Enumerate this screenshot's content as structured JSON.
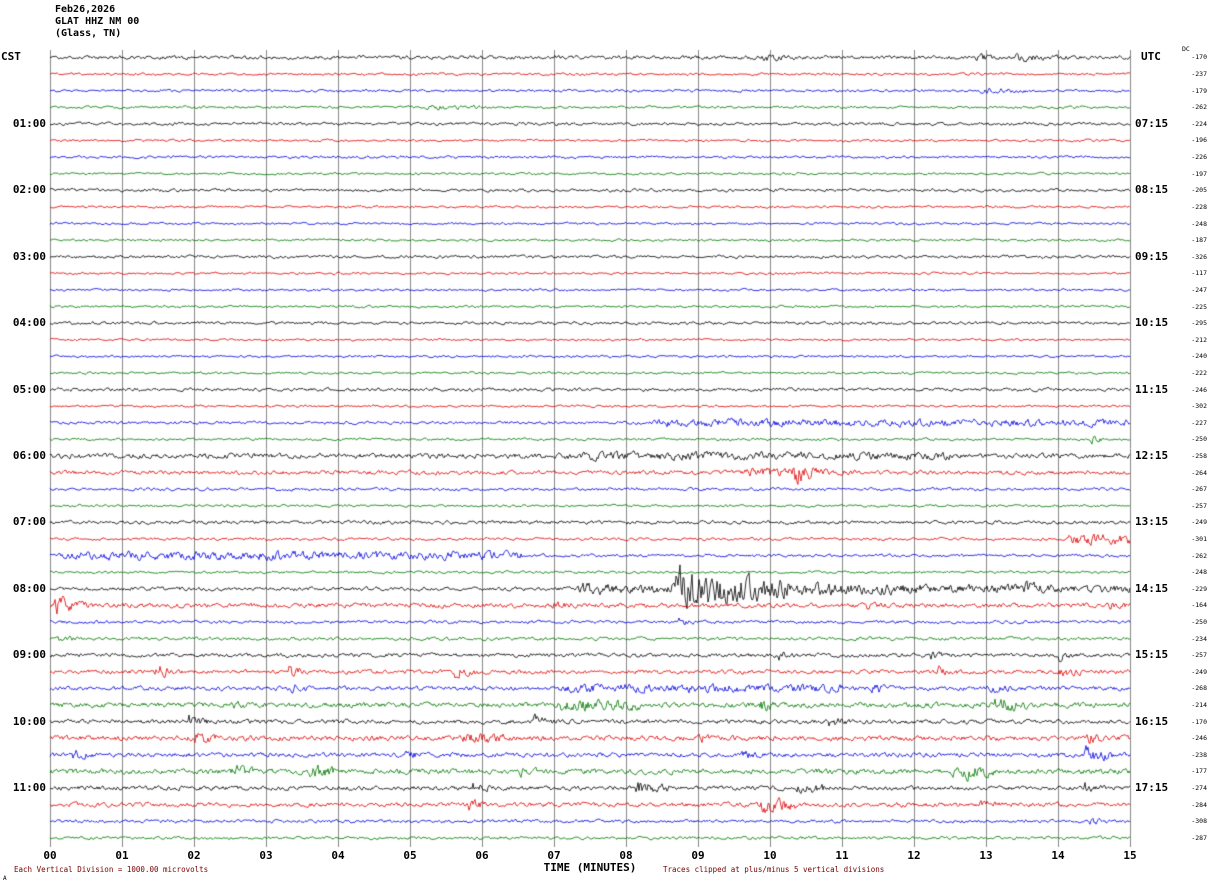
{
  "header": {
    "date": "Feb26,2026",
    "station": "GLAT HHZ NM 00",
    "location": "(Glass, TN)"
  },
  "axis": {
    "left_tz": "CST",
    "right_tz": "UTC",
    "dc_header": "DC",
    "x_label": "TIME (MINUTES)",
    "x_ticks": [
      "00",
      "01",
      "02",
      "03",
      "04",
      "05",
      "06",
      "07",
      "08",
      "09",
      "10",
      "11",
      "12",
      "13",
      "14",
      "15"
    ]
  },
  "footer": {
    "scale_note": "Each Vertical Division = 1000.00 microvolts",
    "clip_note": "Traces clipped at plus/minus 5 vertical divisions",
    "note_color": "#770000",
    "corner_mark": "A"
  },
  "chart_data": {
    "type": "line",
    "title": "Helicorder record GLAT HHZ NM 00 (Glass, TN) Feb26,2026",
    "x_axis": {
      "label": "TIME (MINUTES)",
      "range_minutes": [
        0,
        15
      ]
    },
    "row_interval_minutes": 15,
    "clip_divisions": 5,
    "microvolts_per_division": 1000.0,
    "grid_color": "#888888",
    "colors_cycle": [
      "#000000",
      "#dd0000",
      "#0000dd",
      "#007700"
    ],
    "hour_rows": [
      {
        "row": 4,
        "left": "01:00",
        "right": "07:15"
      },
      {
        "row": 8,
        "left": "02:00",
        "right": "08:15"
      },
      {
        "row": 12,
        "left": "03:00",
        "right": "09:15"
      },
      {
        "row": 16,
        "left": "04:00",
        "right": "10:15"
      },
      {
        "row": 20,
        "left": "05:00",
        "right": "11:15"
      },
      {
        "row": 24,
        "left": "06:00",
        "right": "12:15"
      },
      {
        "row": 28,
        "left": "07:00",
        "right": "13:15"
      },
      {
        "row": 32,
        "left": "08:00",
        "right": "14:15"
      },
      {
        "row": 36,
        "left": "09:00",
        "right": "15:15"
      },
      {
        "row": 40,
        "left": "10:00",
        "right": "16:15"
      },
      {
        "row": 44,
        "left": "11:00",
        "right": "17:15"
      }
    ],
    "traces": [
      {
        "dc": -170,
        "color": 0,
        "amp": 1.6,
        "events": [
          [
            9.85,
            10.45,
            4
          ],
          [
            12.85,
            13.2,
            3.5
          ],
          [
            13.35,
            14.35,
            3
          ]
        ]
      },
      {
        "dc": -237,
        "color": 1,
        "amp": 1.1,
        "events": []
      },
      {
        "dc": -179,
        "color": 2,
        "amp": 1.1,
        "events": [
          [
            12.9,
            13.6,
            1.8,
            1
          ]
        ]
      },
      {
        "dc": -262,
        "color": 3,
        "amp": 1.1,
        "events": [
          [
            5.2,
            6.0,
            1.5,
            1
          ]
        ]
      },
      {
        "dc": -224,
        "color": 0,
        "amp": 1.3,
        "events": []
      },
      {
        "dc": -196,
        "color": 1,
        "amp": 1.0,
        "events": []
      },
      {
        "dc": -226,
        "color": 2,
        "amp": 1.1,
        "events": []
      },
      {
        "dc": -197,
        "color": 3,
        "amp": 1.0,
        "events": []
      },
      {
        "dc": -205,
        "color": 0,
        "amp": 1.3,
        "events": []
      },
      {
        "dc": -228,
        "color": 1,
        "amp": 1.0,
        "events": []
      },
      {
        "dc": -248,
        "color": 2,
        "amp": 1.0,
        "events": []
      },
      {
        "dc": -187,
        "color": 3,
        "amp": 1.0,
        "events": []
      },
      {
        "dc": -326,
        "color": 0,
        "amp": 1.3,
        "events": []
      },
      {
        "dc": -117,
        "color": 1,
        "amp": 1.0,
        "events": []
      },
      {
        "dc": -247,
        "color": 2,
        "amp": 1.0,
        "events": []
      },
      {
        "dc": -225,
        "color": 3,
        "amp": 1.0,
        "events": []
      },
      {
        "dc": -295,
        "color": 0,
        "amp": 1.3,
        "events": []
      },
      {
        "dc": -212,
        "color": 1,
        "amp": 1.0,
        "events": []
      },
      {
        "dc": -240,
        "color": 2,
        "amp": 1.0,
        "events": []
      },
      {
        "dc": -222,
        "color": 3,
        "amp": 1.0,
        "events": []
      },
      {
        "dc": -246,
        "color": 0,
        "amp": 1.4,
        "events": []
      },
      {
        "dc": -302,
        "color": 1,
        "amp": 1.0,
        "events": []
      },
      {
        "dc": -227,
        "color": 2,
        "amp": 1.3,
        "events": [
          [
            8.0,
            15.2,
            2.2,
            0.2
          ]
        ]
      },
      {
        "dc": -250,
        "color": 3,
        "amp": 1.1,
        "events": [
          [
            14.45,
            14.75,
            3
          ]
        ]
      },
      {
        "dc": -258,
        "color": 0,
        "amp": 2.2,
        "events": [
          [
            7.0,
            12.5,
            1.5,
            0.3
          ]
        ]
      },
      {
        "dc": -264,
        "color": 1,
        "amp": 1.8,
        "events": [
          [
            9.6,
            11.2,
            3,
            1.2
          ],
          [
            10.3,
            10.65,
            9,
            2
          ]
        ]
      },
      {
        "dc": -267,
        "color": 2,
        "amp": 1.3,
        "events": []
      },
      {
        "dc": -257,
        "color": 3,
        "amp": 1.1,
        "events": []
      },
      {
        "dc": -249,
        "color": 0,
        "amp": 1.5,
        "events": []
      },
      {
        "dc": -301,
        "color": 1,
        "amp": 1.2,
        "events": [
          [
            14.1,
            15.2,
            4,
            0.2
          ]
        ]
      },
      {
        "dc": -262,
        "color": 2,
        "amp": 1.3,
        "events": [
          [
            0.0,
            6.6,
            2.6,
            0.05
          ]
        ]
      },
      {
        "dc": -248,
        "color": 3,
        "amp": 1.1,
        "events": []
      },
      {
        "dc": -229,
        "color": 0,
        "amp": 1.6,
        "events": [
          [
            7.3,
            8.6,
            4,
            0.8
          ],
          [
            8.6,
            10.3,
            18,
            1.0
          ],
          [
            10.3,
            12.3,
            4.5,
            0.6
          ],
          [
            12.3,
            15.2,
            2.5,
            0.3
          ],
          [
            13.5,
            13.8,
            4,
            2
          ]
        ]
      },
      {
        "dc": -164,
        "color": 1,
        "amp": 2.0,
        "events": [
          [
            0.05,
            0.5,
            7,
            2
          ],
          [
            6.9,
            7.3,
            3,
            2
          ],
          [
            11.3,
            11.6,
            3,
            2
          ],
          [
            14.7,
            15.0,
            4,
            2
          ]
        ]
      },
      {
        "dc": -250,
        "color": 2,
        "amp": 1.4,
        "events": [
          [
            8.7,
            9.0,
            3,
            2
          ]
        ]
      },
      {
        "dc": -234,
        "color": 3,
        "amp": 1.4,
        "events": [
          [
            0.1,
            0.4,
            3,
            2
          ]
        ]
      },
      {
        "dc": -257,
        "color": 0,
        "amp": 1.7,
        "events": [
          [
            10.1,
            10.4,
            3,
            2
          ],
          [
            12.2,
            12.5,
            3,
            2
          ],
          [
            14.0,
            14.3,
            3.5,
            2
          ]
        ]
      },
      {
        "dc": -249,
        "color": 1,
        "amp": 1.8,
        "events": [
          [
            1.45,
            1.8,
            6,
            2
          ],
          [
            3.3,
            3.6,
            6,
            2
          ],
          [
            5.6,
            5.95,
            5,
            2
          ],
          [
            12.3,
            12.6,
            4,
            2
          ],
          [
            14.0,
            14.35,
            4.5,
            2
          ]
        ]
      },
      {
        "dc": -268,
        "color": 2,
        "amp": 1.8,
        "events": [
          [
            3.3,
            3.6,
            4,
            2
          ],
          [
            7.0,
            11.0,
            2.5,
            0.2
          ],
          [
            11.4,
            11.7,
            5,
            2
          ],
          [
            13.0,
            13.4,
            3,
            2
          ]
        ]
      },
      {
        "dc": -214,
        "color": 3,
        "amp": 2.2,
        "events": [
          [
            2.5,
            2.8,
            3,
            2
          ],
          [
            7.0,
            8.2,
            3.5,
            0.5
          ],
          [
            9.85,
            10.15,
            5,
            2
          ],
          [
            13.1,
            13.6,
            6,
            1
          ]
        ]
      },
      {
        "dc": -170,
        "color": 0,
        "amp": 1.9,
        "events": [
          [
            1.9,
            2.2,
            5,
            2
          ],
          [
            6.7,
            7.0,
            4,
            2
          ],
          [
            10.8,
            11.1,
            4,
            2
          ]
        ]
      },
      {
        "dc": -246,
        "color": 1,
        "amp": 2.2,
        "events": [
          [
            2.0,
            2.35,
            6,
            2
          ],
          [
            5.7,
            6.3,
            4,
            1
          ],
          [
            9.0,
            9.3,
            3,
            2
          ],
          [
            14.4,
            14.7,
            4,
            2
          ]
        ]
      },
      {
        "dc": -238,
        "color": 2,
        "amp": 1.9,
        "events": [
          [
            0.3,
            0.6,
            4,
            2
          ],
          [
            4.9,
            5.2,
            4,
            2
          ],
          [
            9.6,
            9.9,
            3,
            2
          ],
          [
            14.35,
            14.75,
            6,
            1
          ]
        ]
      },
      {
        "dc": -177,
        "color": 3,
        "amp": 2.3,
        "events": [
          [
            2.5,
            2.9,
            5,
            2
          ],
          [
            3.6,
            4.0,
            6,
            1.5
          ],
          [
            6.5,
            6.8,
            3,
            2
          ],
          [
            12.5,
            13.1,
            6,
            0.8
          ]
        ]
      },
      {
        "dc": -274,
        "color": 0,
        "amp": 1.9,
        "events": [
          [
            5.85,
            6.15,
            4,
            2
          ],
          [
            8.1,
            8.6,
            5,
            1
          ],
          [
            10.35,
            10.75,
            5,
            1
          ],
          [
            14.35,
            14.65,
            4,
            2
          ]
        ]
      },
      {
        "dc": -284,
        "color": 1,
        "amp": 1.9,
        "events": [
          [
            5.8,
            6.1,
            4,
            2
          ],
          [
            9.85,
            10.35,
            7,
            1.2
          ],
          [
            12.9,
            13.2,
            3,
            2
          ]
        ]
      },
      {
        "dc": -308,
        "color": 2,
        "amp": 1.4,
        "events": [
          [
            14.4,
            14.7,
            3,
            2
          ]
        ]
      },
      {
        "dc": -287,
        "color": 3,
        "amp": 1.3,
        "events": []
      }
    ]
  }
}
